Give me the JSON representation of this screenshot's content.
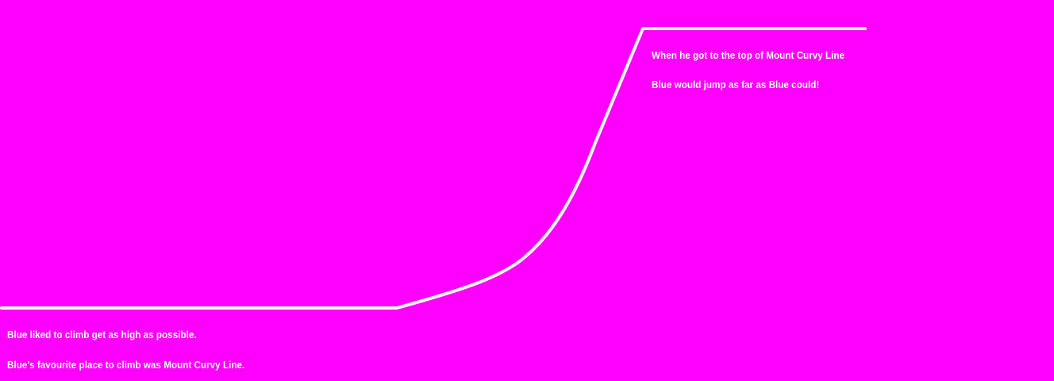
{
  "colors": {
    "background": "#ff00ff",
    "line": "#ffffff",
    "text": "#ffffff"
  },
  "story": {
    "bottom_line_1": "Blue liked to climb get as high as possible.",
    "bottom_line_2": "Blue's favourite place to climb was Mount Curvy Line.",
    "top_line_1": "When he got to the top of Mount Curvy Line",
    "top_line_2": "Blue would jump as far as Blue could!"
  }
}
